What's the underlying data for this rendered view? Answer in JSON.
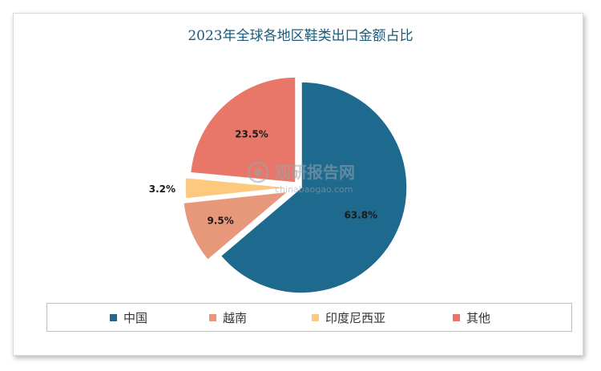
{
  "chart_data": {
    "type": "pie",
    "title": "2023年全球各地区鞋类出口金额占比",
    "unit": "%",
    "slices": [
      {
        "label": "中国",
        "value": 63.8,
        "display": "63.8%",
        "color": "#1e6a8e"
      },
      {
        "label": "越南",
        "value": 9.5,
        "display": "9.5%",
        "color": "#e8987a"
      },
      {
        "label": "印度尼西亚",
        "value": 3.2,
        "display": "3.2%",
        "color": "#fcc97f"
      },
      {
        "label": "其他",
        "value": 23.5,
        "display": "23.5%",
        "color": "#e8776a"
      }
    ],
    "legend_position": "bottom",
    "exploded": true
  },
  "watermark": {
    "brand": "观研报告网",
    "url": "chinabaogao.com"
  }
}
